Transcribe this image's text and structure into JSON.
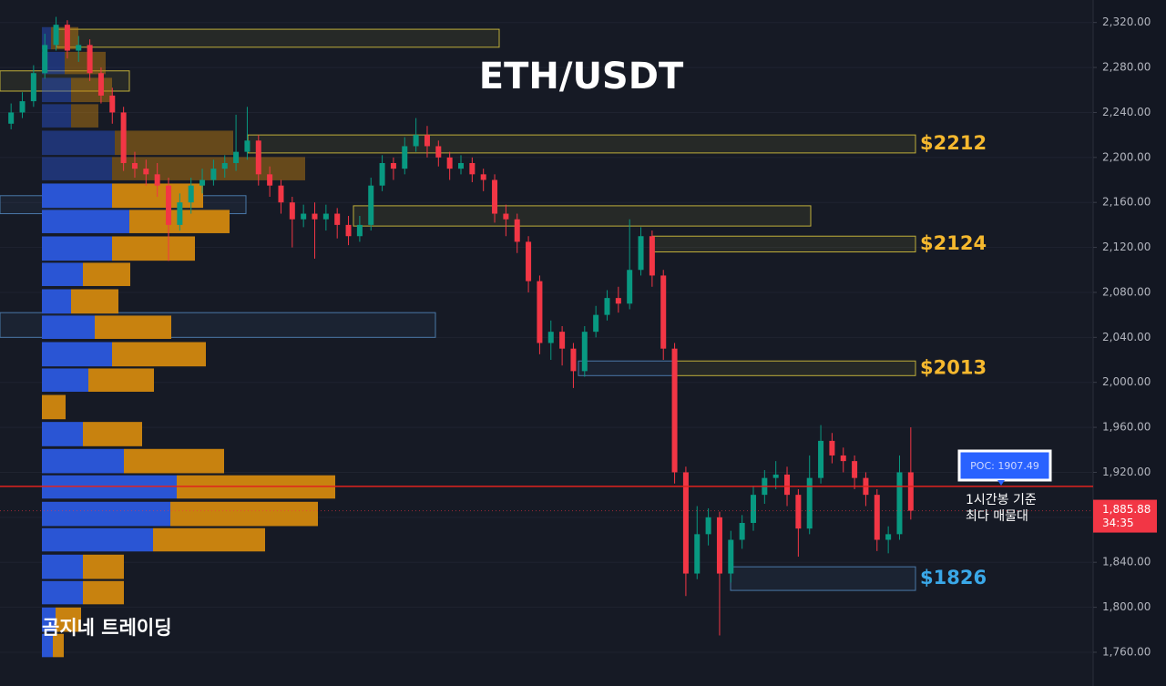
{
  "chart_data": {
    "type": "candlestick",
    "title": "ETH/USDT",
    "watermark": "곰지네 트레이딩",
    "ylim": [
      1730,
      2340
    ],
    "yticks": [
      {
        "value": 1760,
        "label": "1,760.00"
      },
      {
        "value": 1800,
        "label": "1,800.00"
      },
      {
        "value": 1840,
        "label": "1,840.00"
      },
      {
        "value": 1880,
        "label": "1,880.00"
      },
      {
        "value": 1920,
        "label": "1,920.00"
      },
      {
        "value": 1960,
        "label": "1,960.00"
      },
      {
        "value": 2000,
        "label": "2,000.00"
      },
      {
        "value": 2040,
        "label": "2,040.00"
      },
      {
        "value": 2080,
        "label": "2,080.00"
      },
      {
        "value": 2120,
        "label": "2,120.00"
      },
      {
        "value": 2160,
        "label": "2,160.00"
      },
      {
        "value": 2200,
        "label": "2,200.00"
      },
      {
        "value": 2240,
        "label": "2,240.00"
      },
      {
        "value": 2280,
        "label": "2,280.00"
      },
      {
        "value": 2320,
        "label": "2,320.00"
      }
    ],
    "grid": true,
    "up_color": "#089981",
    "down_color": "#f23645",
    "open": [
      2230,
      2240,
      2250,
      2275,
      2300,
      2318,
      2295,
      2300,
      2275,
      2255,
      2240,
      2195,
      2190,
      2185,
      2175,
      2140,
      2160,
      2175,
      2180,
      2190,
      2195,
      2205,
      2215,
      2185,
      2175,
      2160,
      2145,
      2150,
      2145,
      2150,
      2140,
      2130,
      2140,
      2175,
      2195,
      2190,
      2210,
      2220,
      2210,
      2200,
      2190,
      2195,
      2185,
      2180,
      2150,
      2145,
      2125,
      2090,
      2035,
      2045,
      2030,
      2010,
      2045,
      2060,
      2075,
      2070,
      2100,
      2130,
      2095,
      2030,
      1920,
      1830,
      1865,
      1880,
      1830,
      1860,
      1875,
      1900,
      1915,
      1918,
      1900,
      1870,
      1915,
      1948,
      1935,
      1930,
      1915,
      1900,
      1860,
      1865,
      1920
    ],
    "high": [
      2248,
      2258,
      2282,
      2310,
      2325,
      2322,
      2308,
      2305,
      2280,
      2262,
      2245,
      2205,
      2198,
      2195,
      2182,
      2168,
      2182,
      2190,
      2198,
      2202,
      2238,
      2245,
      2220,
      2192,
      2180,
      2165,
      2158,
      2160,
      2158,
      2155,
      2148,
      2148,
      2182,
      2202,
      2200,
      2218,
      2235,
      2228,
      2215,
      2205,
      2202,
      2200,
      2190,
      2185,
      2158,
      2150,
      2130,
      2095,
      2055,
      2050,
      2035,
      2050,
      2068,
      2082,
      2085,
      2145,
      2138,
      2135,
      2100,
      2035,
      1925,
      1890,
      1888,
      1885,
      1868,
      1882,
      1908,
      1922,
      1930,
      1925,
      1905,
      1935,
      1962,
      1955,
      1942,
      1935,
      1920,
      1905,
      1872,
      1935,
      1960
    ],
    "low": [
      2225,
      2235,
      2245,
      2270,
      2295,
      2288,
      2285,
      2268,
      2248,
      2230,
      2188,
      2182,
      2175,
      2165,
      2108,
      2135,
      2150,
      2168,
      2175,
      2182,
      2188,
      2198,
      2175,
      2165,
      2150,
      2120,
      2138,
      2110,
      2135,
      2128,
      2122,
      2125,
      2135,
      2170,
      2180,
      2185,
      2205,
      2200,
      2192,
      2180,
      2185,
      2178,
      2170,
      2142,
      2130,
      2115,
      2080,
      2025,
      2020,
      2015,
      1995,
      2005,
      2040,
      2055,
      2062,
      2065,
      2095,
      2085,
      2020,
      1910,
      1810,
      1825,
      1855,
      1775,
      1822,
      1852,
      1868,
      1892,
      1905,
      1890,
      1845,
      1865,
      1910,
      1928,
      1920,
      1905,
      1890,
      1850,
      1848,
      1860,
      1878
    ],
    "close": [
      2240,
      2250,
      2275,
      2300,
      2318,
      2295,
      2300,
      2275,
      2255,
      2240,
      2195,
      2190,
      2185,
      2175,
      2140,
      2160,
      2175,
      2180,
      2190,
      2195,
      2205,
      2215,
      2185,
      2175,
      2160,
      2145,
      2150,
      2145,
      2150,
      2140,
      2130,
      2140,
      2175,
      2195,
      2190,
      2210,
      2220,
      2210,
      2200,
      2190,
      2195,
      2185,
      2180,
      2150,
      2145,
      2125,
      2090,
      2035,
      2045,
      2030,
      2010,
      2045,
      2060,
      2075,
      2070,
      2100,
      2130,
      2095,
      2030,
      1920,
      1830,
      1865,
      1880,
      1830,
      1860,
      1875,
      1900,
      1915,
      1918,
      1900,
      1870,
      1915,
      1948,
      1935,
      1930,
      1915,
      1900,
      1860,
      1865,
      1920,
      1885.88
    ],
    "volume_profile": {
      "levels": [
        2306,
        2284,
        2260,
        2237,
        2213,
        2190,
        2166,
        2143,
        2119,
        2096,
        2072,
        2049,
        2025,
        2002,
        1978,
        1954,
        1930,
        1907,
        1883,
        1860,
        1836,
        1813,
        1789,
        1766
      ],
      "series": [
        {
          "color": "#2a55d4",
          "values": [
            10,
            25,
            32,
            32,
            80,
            77,
            77,
            96,
            77,
            45,
            32,
            58,
            77,
            51,
            0,
            45,
            90,
            148,
            141,
            122,
            45,
            45,
            15,
            12
          ]
        },
        {
          "color": "#c8820f",
          "values": [
            30,
            45,
            45,
            30,
            130,
            212,
            100,
            110,
            91,
            52,
            52,
            84,
            103,
            72,
            26,
            65,
            110,
            174,
            162,
            123,
            45,
            45,
            28,
            12
          ]
        }
      ]
    },
    "zones": [
      {
        "low": 2298,
        "high": 2314,
        "color": "#bfae3a"
      },
      {
        "low": 2259,
        "high": 2277,
        "color": "#bfae3a"
      },
      {
        "low": 2204,
        "high": 2220,
        "color": "#bfae3a",
        "label": "$2212",
        "label_color": "#f5b82e"
      },
      {
        "low": 2139,
        "high": 2157,
        "color": "#bfae3a"
      },
      {
        "low": 2116,
        "high": 2130,
        "color": "#bfae3a",
        "label": "$2124",
        "label_color": "#f5b82e"
      },
      {
        "low": 2006,
        "high": 2019,
        "color": "#bfae3a",
        "label": "$2013",
        "label_color": "#f5b82e"
      },
      {
        "low": 1815,
        "high": 1836,
        "color": "#4a78a8",
        "label": "$1826",
        "label_color": "#3aa8e8"
      },
      {
        "low": 2150,
        "high": 2166,
        "color": "#4a78a8"
      },
      {
        "low": 2040,
        "high": 2062,
        "color": "#4a78a8"
      },
      {
        "low": 2006,
        "high": 2019,
        "color": "#4a78a8"
      }
    ],
    "poc": {
      "value": 1907.49,
      "label": "POC: 1907.49",
      "color": "#e0231f"
    },
    "annotation": [
      "1시간봉 기준",
      "최다 매물대"
    ],
    "price_tag": {
      "value": 1885.88,
      "label": "1,885.88",
      "timer": "34:35",
      "color": "#f23645"
    }
  }
}
